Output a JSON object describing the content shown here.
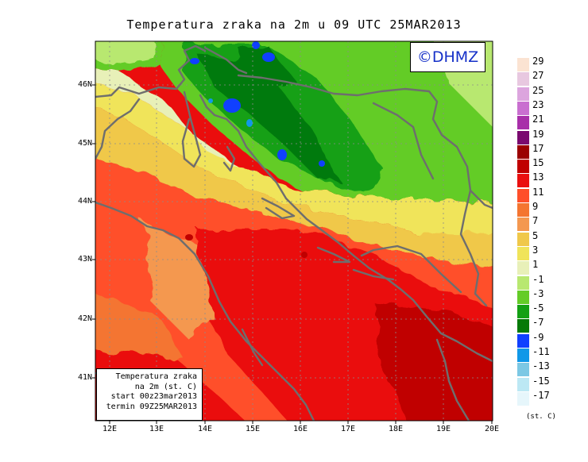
{
  "title": "Temperatura zraka na 2m u 09 UTC 25MAR2013",
  "logo": "©DHMZ",
  "info": {
    "line1": "Temperatura zraka",
    "line2": "na 2m (st. C)",
    "line3": "start 00z23mar2013",
    "line4": "termin 09Z25MAR2013"
  },
  "lat_labels": [
    "46N",
    "45N",
    "44N",
    "43N",
    "42N",
    "41N"
  ],
  "lon_labels": [
    "12E",
    "13E",
    "14E",
    "15E",
    "16E",
    "17E",
    "18E",
    "19E",
    "20E"
  ],
  "legend": {
    "unit": "(st. C)",
    "labels": [
      "29",
      "27",
      "25",
      "23",
      "21",
      "19",
      "17",
      "15",
      "13",
      "11",
      "9",
      "7",
      "5",
      "3",
      "1",
      "-1",
      "-3",
      "-5",
      "-7",
      "-9",
      "-11",
      "-13",
      "-15",
      "-17"
    ],
    "colors": [
      "#fbe3d2",
      "#e8c8e0",
      "#dca5de",
      "#c96fd0",
      "#a82fa9",
      "#7a0a6f",
      "#9b0000",
      "#c00000",
      "#ea1010",
      "#ff4f2a",
      "#f47530",
      "#f49850",
      "#f0c84a",
      "#f0e45a",
      "#e8f0b8",
      "#b8e870",
      "#64cc28",
      "#14a014",
      "#067a08",
      "#1040ff",
      "#1098e8",
      "#7cc8e4",
      "#bce8f4",
      "#e6f6fb"
    ]
  },
  "colors": {
    "coastline": "#6e6e6e",
    "grid": "#8c8c8c"
  }
}
